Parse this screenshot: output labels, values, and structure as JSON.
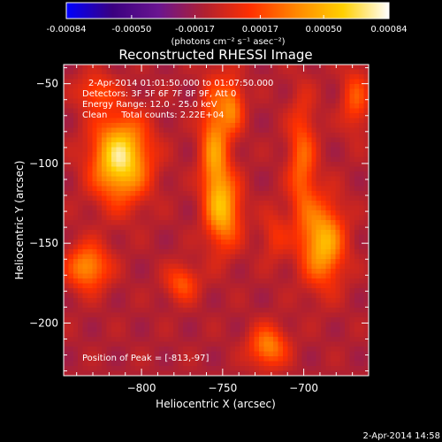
{
  "colorbar": {
    "tick_labels": [
      "-0.00084",
      "-0.00050",
      "-0.00017",
      "0.00017",
      "0.00050",
      "0.00084"
    ],
    "tick_values": [
      -0.00084,
      -0.0005,
      -0.00017,
      0.00017,
      0.0005,
      0.00084
    ],
    "range": [
      -0.00084,
      0.00084
    ],
    "unit_label": "(photons cm⁻² s⁻¹ asec⁻²)",
    "colors": [
      "#0000ff",
      "#3a0080",
      "#6a1590",
      "#b02030",
      "#ff3000",
      "#ff8800",
      "#ffd000",
      "#ffffff"
    ]
  },
  "title": "Reconstructed RHESSI Image",
  "info": {
    "time_range": "2-Apr-2014 01:01:50.000 to 01:07:50.000",
    "detectors": "Detectors: 3F 5F 6F 7F 8F 9F, Att 0",
    "energy": "Energy Range: 12.0 - 25.0 keV",
    "clean": "Clean     Total counts: 2.22E+04",
    "peak": "Position of Peak = [-813,-97]"
  },
  "footer_timestamp": "2-Apr-2014 14:58",
  "chart_data": {
    "type": "heatmap",
    "xlabel": "Heliocentric X (arcsec)",
    "ylabel": "Heliocentric Y (arcsec)",
    "xlim": [
      -848,
      -660
    ],
    "ylim": [
      -233,
      -38
    ],
    "x_ticks": [
      -800,
      -750,
      -700
    ],
    "x_tick_labels": [
      "−800",
      "−750",
      "−700"
    ],
    "y_ticks": [
      -50,
      -100,
      -150,
      -200
    ],
    "y_tick_labels": [
      "−50",
      "−100",
      "−150",
      "−200"
    ],
    "sources": [
      {
        "x": -813,
        "y": -97,
        "value": 0.00084,
        "sx": 12,
        "sy": 18
      },
      {
        "x": -755,
        "y": -93,
        "value": 0.00052,
        "sx": 6,
        "sy": 30
      },
      {
        "x": -748,
        "y": -130,
        "value": 0.0005,
        "sx": 7,
        "sy": 16
      },
      {
        "x": -744,
        "y": -64,
        "value": 0.00042,
        "sx": 5,
        "sy": 12
      },
      {
        "x": -688,
        "y": -150,
        "value": 0.00064,
        "sx": 9,
        "sy": 18
      },
      {
        "x": -701,
        "y": -100,
        "value": 0.00038,
        "sx": 6,
        "sy": 28
      },
      {
        "x": -833,
        "y": -165,
        "value": 0.00052,
        "sx": 9,
        "sy": 10
      },
      {
        "x": -775,
        "y": -175,
        "value": 0.00034,
        "sx": 7,
        "sy": 8
      },
      {
        "x": -722,
        "y": -215,
        "value": 0.00048,
        "sx": 8,
        "sy": 9
      },
      {
        "x": -718,
        "y": -145,
        "value": 0.0002,
        "sx": 6,
        "sy": 12
      },
      {
        "x": -828,
        "y": -55,
        "value": 0.0003,
        "sx": 8,
        "sy": 8
      },
      {
        "x": -668,
        "y": -60,
        "value": 0.00032,
        "sx": 6,
        "sy": 14
      }
    ],
    "background": -0.00012
  }
}
